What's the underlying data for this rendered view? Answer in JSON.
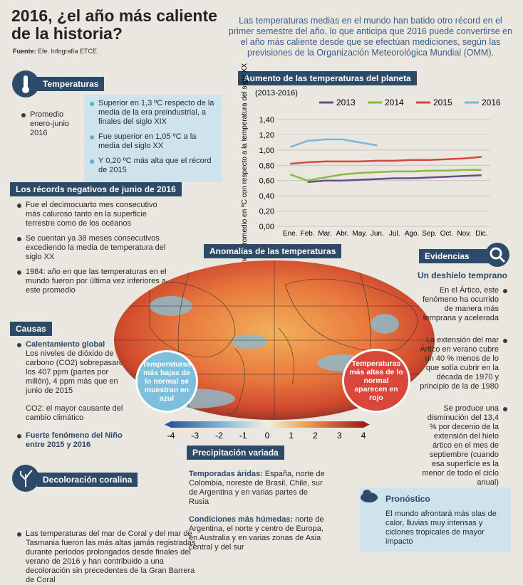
{
  "header": {
    "title": "2016, ¿el año más caliente de la historia?",
    "source_label": "Fuente:",
    "source": "Efe. Infografía ETCE.",
    "intro": "Las temperaturas medias en el mundo han batido otro récord en el primer semestre del año, lo que anticipa que 2016 puede convertirse en el año más caliente desde que se efectúan mediciones, según las previsiones de la Organización Meteorológica Mundial (OMM)."
  },
  "temperaturas": {
    "heading": "Temperaturas",
    "period": "Promedio enero-junio 2016",
    "items": [
      "Superior en 1,3 ºC respecto de la media de la era preindustrial, a finales del siglo XIX",
      "Fue superior en 1,05 ºC a la media del siglo XX",
      "Y 0,20 ºC más alta que el récord de 2015"
    ]
  },
  "records": {
    "heading": "Los récords negativos de junio de 2016",
    "items": [
      "Fue el decimocuarto mes consecutivo más caluroso tanto en la superficie terrestre como de los océanos",
      "Se cuentan ya 38 meses consecutivos excediendo la media de temperatura del siglo XX",
      "1984: año en que las temperaturas en el mundo fueron por última vez inferiores a este promedio"
    ]
  },
  "causas": {
    "heading": "Causas",
    "item1_title": "Calentamiento global",
    "item1_body": "Los niveles de dióxido de carbono (CO2) sobrepasaron los 407 ppm (partes por millón), 4 ppm más que en junio de 2015",
    "item1_note": "CO2: el mayor causante del cambio climático",
    "item2": "Fuerte fenómeno del Niño entre 2015 y 2016"
  },
  "coral": {
    "heading": "Decoloración coralina",
    "body": "Las temperaturas del mar de Coral y del mar de Tasmania fueron las más altas jamás registradas durante periodos prolongados desde finales del verano de 2016 y han contribuido a una decoloración sin precedentes de la Gran Barrera de Coral"
  },
  "map": {
    "heading": "Anomalías de las temperaturas",
    "cold": "Temperaturas más bajas de lo normal se muestran en azul",
    "hot": "Temperaturas más altas de lo normal aparecen en rojo",
    "scale": [
      -4,
      -3,
      -2,
      -1,
      0,
      1,
      2,
      3,
      4
    ]
  },
  "precip": {
    "heading": "Precipitación variada",
    "dry_label": "Temporadas áridas:",
    "dry": "España, norte de Colombia, noreste de Brasil, Chile, sur de Argentina y en varias partes de Rusia",
    "wet_label": "Condiciones más húmedas:",
    "wet": "norte de Argentina, el norte y centro de Europa, en Australia y en varias zonas de Asia central y del sur"
  },
  "evidencias": {
    "heading": "Evidencias",
    "subheading": "Un deshielo temprano",
    "items": [
      "En el Ártico, este fenómeno ha ocurrido de manera más temprana y acelerada",
      "La extensión del mar Ártico en verano cubre un 40 % menos de lo que solía cubrir en la década de 1970 y principio de la de 1980",
      "Se produce una disminución del 13,4 % por decenio de la extensión del hielo ártico en el mes de septiembre (cuando esa superficie es la menor de todo el ciclo anual)"
    ]
  },
  "pronostico": {
    "heading": "Pronóstico",
    "body": "El mundo afrontará más olas de calor, lluvias muy intensas y ciclones tropicales de mayor impacto"
  },
  "chart_data": {
    "type": "line",
    "title": "Aumento de las temperaturas del planeta",
    "subtitle": "(2013-2016)",
    "y_label": "Diferencia promedio en ºC con respecto a la temperatura del siglo XX",
    "categories": [
      "Ene.",
      "Feb.",
      "Mar.",
      "Abr.",
      "May.",
      "Jun.",
      "Jul.",
      "Ago.",
      "Sep.",
      "Oct.",
      "Nov.",
      "Dic."
    ],
    "series": [
      {
        "name": "2013",
        "color": "#6a4a8e",
        "values": [
          null,
          0.58,
          0.6,
          0.6,
          0.61,
          0.62,
          0.63,
          0.63,
          0.64,
          0.65,
          0.66,
          0.67
        ]
      },
      {
        "name": "2014",
        "color": "#8cb83c",
        "values": [
          0.68,
          0.6,
          0.64,
          0.68,
          0.7,
          0.71,
          0.72,
          0.72,
          0.73,
          0.73,
          0.74,
          0.74
        ]
      },
      {
        "name": "2015",
        "color": "#d9473a",
        "values": [
          0.82,
          0.84,
          0.85,
          0.85,
          0.85,
          0.86,
          0.86,
          0.87,
          0.87,
          0.88,
          0.89,
          0.91
        ]
      },
      {
        "name": "2016",
        "color": "#7cb6d8",
        "values": [
          1.04,
          1.12,
          1.14,
          1.14,
          1.1,
          1.06,
          null,
          null,
          null,
          null,
          null,
          null
        ]
      }
    ],
    "ylim": [
      0,
      1.4
    ],
    "yticks": [
      {
        "value": 0,
        "label": "0,00"
      },
      {
        "value": 0.2,
        "label": "0,20"
      },
      {
        "value": 0.4,
        "label": "0,40"
      },
      {
        "value": 0.6,
        "label": "0,60"
      },
      {
        "value": 0.8,
        "label": "0,80"
      },
      {
        "value": 1.0,
        "label": "1,00"
      },
      {
        "value": 1.2,
        "label": "1,20"
      },
      {
        "value": 1.4,
        "label": "1,40"
      }
    ],
    "grid": true
  }
}
